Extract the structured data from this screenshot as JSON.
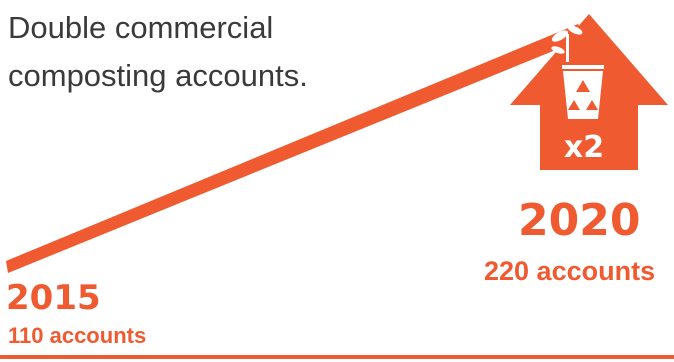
{
  "headline": {
    "line1": "Double commercial",
    "line2": "composting accounts."
  },
  "start": {
    "year": "2015",
    "accounts": "110 accounts"
  },
  "end": {
    "year": "2020",
    "accounts": "220 accounts",
    "multiplier": "x2"
  },
  "icons": [
    "up-arrow-house-icon",
    "recycling-bin-icon",
    "plant-sprout-icon"
  ],
  "colors": {
    "accent": "#f05a30",
    "text": "#3a3a3a",
    "background": "#ffffff"
  }
}
